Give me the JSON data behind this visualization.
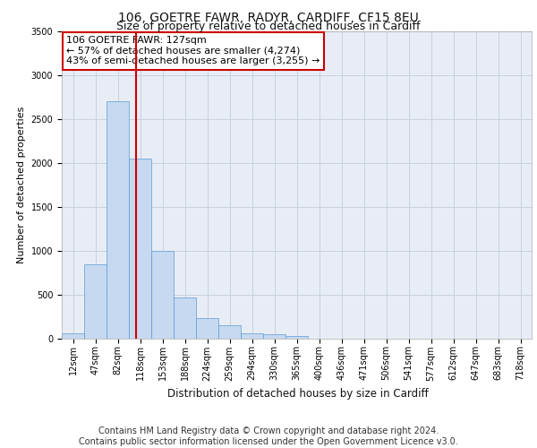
{
  "title": "106, GOETRE FAWR, RADYR, CARDIFF, CF15 8EU",
  "subtitle": "Size of property relative to detached houses in Cardiff",
  "xlabel": "Distribution of detached houses by size in Cardiff",
  "ylabel": "Number of detached properties",
  "categories": [
    "12sqm",
    "47sqm",
    "82sqm",
    "118sqm",
    "153sqm",
    "188sqm",
    "224sqm",
    "259sqm",
    "294sqm",
    "330sqm",
    "365sqm",
    "400sqm",
    "436sqm",
    "471sqm",
    "506sqm",
    "541sqm",
    "577sqm",
    "612sqm",
    "647sqm",
    "683sqm",
    "718sqm"
  ],
  "values": [
    55,
    840,
    2700,
    2050,
    1000,
    460,
    230,
    150,
    60,
    45,
    30,
    0,
    0,
    0,
    0,
    0,
    0,
    0,
    0,
    0,
    0
  ],
  "bar_color": "#c6d9f0",
  "bar_edge_color": "#5b9bd5",
  "annotation_box_text": "106 GOETRE FAWR: 127sqm\n← 57% of detached houses are smaller (4,274)\n43% of semi-detached houses are larger (3,255) →",
  "annotation_box_facecolor": "#ffffff",
  "annotation_box_edgecolor": "#cc0000",
  "vline_color": "#cc0000",
  "vline_x": 2.82,
  "ylim": [
    0,
    3500
  ],
  "yticks": [
    0,
    500,
    1000,
    1500,
    2000,
    2500,
    3000,
    3500
  ],
  "grid_color": "#c8d0de",
  "bg_color": "#e8edf5",
  "footer_text": "Contains HM Land Registry data © Crown copyright and database right 2024.\nContains public sector information licensed under the Open Government Licence v3.0.",
  "title_fontsize": 10,
  "subtitle_fontsize": 9,
  "axis_label_fontsize": 8,
  "tick_fontsize": 7,
  "annotation_fontsize": 8,
  "footer_fontsize": 7
}
